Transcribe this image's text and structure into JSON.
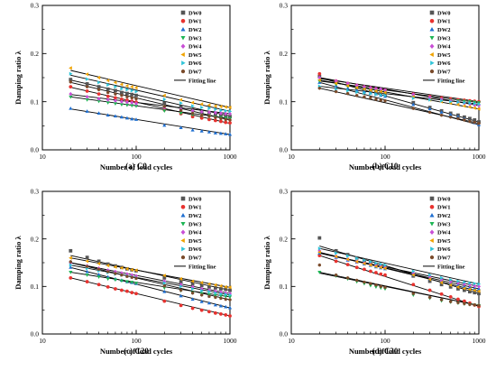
{
  "figure": {
    "legend_entries": [
      "DW0",
      "DW1",
      "DW2",
      "DW3",
      "DW4",
      "DW5",
      "DW6",
      "DW7"
    ],
    "legend_fit_label": "Fitting line",
    "series_styles": [
      {
        "name": "DW0",
        "color": "#555555",
        "marker": "square"
      },
      {
        "name": "DW1",
        "color": "#e8322f",
        "marker": "circle"
      },
      {
        "name": "DW2",
        "color": "#1f6fd1",
        "marker": "triangle-up"
      },
      {
        "name": "DW3",
        "color": "#1db554",
        "marker": "triangle-down"
      },
      {
        "name": "DW4",
        "color": "#c94fd6",
        "marker": "diamond"
      },
      {
        "name": "DW5",
        "color": "#f0a300",
        "marker": "triangle-left"
      },
      {
        "name": "DW6",
        "color": "#2fc4d8",
        "marker": "triangle-right"
      },
      {
        "name": "DW7",
        "color": "#7a4a2a",
        "marker": "hexagon"
      }
    ]
  },
  "chart_data": [
    {
      "type": "scatter",
      "caption": "(a) C0",
      "xlabel": "Number of load cycles",
      "ylabel": "Damping ratio λ",
      "xscale": "log",
      "xlim": [
        10,
        1000
      ],
      "ylim": [
        0.0,
        0.3
      ],
      "xticks": [
        10,
        100,
        1000
      ],
      "yticks": [
        0.0,
        0.1,
        0.2,
        0.3
      ],
      "x": [
        20,
        30,
        40,
        50,
        60,
        70,
        80,
        90,
        100,
        200,
        300,
        400,
        500,
        600,
        700,
        800,
        900,
        1000
      ],
      "series": [
        {
          "name": "DW0",
          "fit": [
            0.145,
            0.07
          ],
          "values": [
            0.146,
            0.137,
            0.131,
            0.126,
            0.123,
            0.119,
            0.117,
            0.115,
            0.113,
            0.097,
            0.089,
            0.083,
            0.079,
            0.077,
            0.074,
            0.072,
            0.071,
            0.069
          ]
        },
        {
          "name": "DW1",
          "fit": [
            0.13,
            0.055
          ],
          "values": [
            0.131,
            0.122,
            0.116,
            0.111,
            0.108,
            0.105,
            0.103,
            0.101,
            0.099,
            0.083,
            0.075,
            0.069,
            0.066,
            0.063,
            0.061,
            0.059,
            0.057,
            0.056
          ]
        },
        {
          "name": "DW2",
          "fit": [
            0.085,
            0.032
          ],
          "values": [
            0.086,
            0.08,
            0.076,
            0.072,
            0.07,
            0.068,
            0.066,
            0.064,
            0.063,
            0.051,
            0.046,
            0.041,
            0.039,
            0.037,
            0.035,
            0.034,
            0.033,
            0.032
          ]
        },
        {
          "name": "DW3",
          "fit": [
            0.11,
            0.065
          ],
          "values": [
            0.11,
            0.104,
            0.101,
            0.098,
            0.096,
            0.094,
            0.093,
            0.092,
            0.091,
            0.081,
            0.076,
            0.073,
            0.071,
            0.069,
            0.068,
            0.067,
            0.066,
            0.065
          ]
        },
        {
          "name": "DW4",
          "fit": [
            0.115,
            0.075
          ],
          "values": [
            0.116,
            0.11,
            0.106,
            0.104,
            0.102,
            0.1,
            0.099,
            0.098,
            0.096,
            0.088,
            0.084,
            0.081,
            0.079,
            0.078,
            0.077,
            0.076,
            0.075,
            0.075
          ]
        },
        {
          "name": "DW5",
          "fit": [
            0.165,
            0.088
          ],
          "values": [
            0.17,
            0.157,
            0.15,
            0.144,
            0.14,
            0.136,
            0.133,
            0.131,
            0.129,
            0.113,
            0.104,
            0.098,
            0.095,
            0.093,
            0.091,
            0.09,
            0.089,
            0.088
          ]
        },
        {
          "name": "DW6",
          "fit": [
            0.155,
            0.08
          ],
          "values": [
            0.158,
            0.147,
            0.14,
            0.135,
            0.131,
            0.127,
            0.125,
            0.123,
            0.121,
            0.105,
            0.097,
            0.091,
            0.088,
            0.086,
            0.084,
            0.082,
            0.081,
            0.08
          ]
        },
        {
          "name": "DW7",
          "fit": [
            0.14,
            0.062
          ],
          "values": [
            0.141,
            0.131,
            0.125,
            0.119,
            0.116,
            0.113,
            0.11,
            0.108,
            0.106,
            0.09,
            0.082,
            0.076,
            0.072,
            0.07,
            0.067,
            0.065,
            0.063,
            0.062
          ]
        }
      ]
    },
    {
      "type": "scatter",
      "caption": "(b) C10",
      "xlabel": "Number of load cycles",
      "ylabel": "Damping ratio λ",
      "xscale": "log",
      "xlim": [
        10,
        1000
      ],
      "ylim": [
        0.0,
        0.3
      ],
      "xticks": [
        10,
        100,
        1000
      ],
      "yticks": [
        0.0,
        0.1,
        0.2,
        0.3
      ],
      "x": [
        20,
        30,
        40,
        50,
        60,
        70,
        80,
        90,
        100,
        200,
        300,
        400,
        500,
        600,
        700,
        800,
        900,
        1000
      ],
      "series": [
        {
          "name": "DW0",
          "fit": [
            0.15,
            0.058
          ],
          "values": [
            0.152,
            0.141,
            0.135,
            0.129,
            0.126,
            0.122,
            0.119,
            0.117,
            0.116,
            0.098,
            0.088,
            0.081,
            0.076,
            0.072,
            0.068,
            0.065,
            0.062,
            0.058
          ]
        },
        {
          "name": "DW1",
          "fit": [
            0.148,
            0.1
          ],
          "values": [
            0.158,
            0.143,
            0.138,
            0.134,
            0.131,
            0.129,
            0.127,
            0.125,
            0.124,
            0.116,
            0.111,
            0.108,
            0.106,
            0.104,
            0.103,
            0.102,
            0.101,
            0.1
          ]
        },
        {
          "name": "DW2",
          "fit": [
            0.14,
            0.052
          ],
          "values": [
            0.14,
            0.133,
            0.128,
            0.124,
            0.121,
            0.118,
            0.116,
            0.113,
            0.111,
            0.094,
            0.085,
            0.078,
            0.073,
            0.069,
            0.064,
            0.06,
            0.056,
            0.052
          ]
        },
        {
          "name": "DW3",
          "fit": [
            0.143,
            0.098
          ],
          "values": [
            0.143,
            0.136,
            0.132,
            0.129,
            0.127,
            0.125,
            0.123,
            0.122,
            0.121,
            0.113,
            0.108,
            0.105,
            0.103,
            0.102,
            0.101,
            0.1,
            0.099,
            0.098
          ]
        },
        {
          "name": "DW4",
          "fit": [
            0.15,
            0.092
          ],
          "values": [
            0.15,
            0.143,
            0.138,
            0.134,
            0.131,
            0.129,
            0.127,
            0.126,
            0.124,
            0.115,
            0.109,
            0.105,
            0.102,
            0.099,
            0.097,
            0.095,
            0.093,
            0.092
          ]
        },
        {
          "name": "DW5",
          "fit": [
            0.145,
            0.085
          ],
          "values": [
            0.145,
            0.138,
            0.133,
            0.129,
            0.126,
            0.124,
            0.122,
            0.121,
            0.119,
            0.11,
            0.104,
            0.1,
            0.097,
            0.094,
            0.091,
            0.089,
            0.087,
            0.085
          ]
        },
        {
          "name": "DW6",
          "fit": [
            0.132,
            0.095
          ],
          "values": [
            0.132,
            0.126,
            0.123,
            0.12,
            0.118,
            0.117,
            0.115,
            0.114,
            0.113,
            0.107,
            0.104,
            0.102,
            0.1,
            0.099,
            0.098,
            0.097,
            0.096,
            0.095
          ]
        },
        {
          "name": "DW7",
          "fit": [
            0.128,
            0.055
          ],
          "values": [
            0.128,
            0.121,
            0.117,
            0.113,
            0.11,
            0.108,
            0.105,
            0.103,
            0.102,
            0.086,
            0.078,
            0.072,
            0.068,
            0.065,
            0.062,
            0.059,
            0.057,
            0.055
          ]
        }
      ]
    },
    {
      "type": "scatter",
      "caption": "(c) C20",
      "xlabel": "Number of load cycles",
      "ylabel": "Damping ratio λ",
      "xscale": "log",
      "xlim": [
        10,
        1000
      ],
      "ylim": [
        0.0,
        0.3
      ],
      "xticks": [
        10,
        100,
        1000
      ],
      "yticks": [
        0.0,
        0.1,
        0.2,
        0.3
      ],
      "x": [
        20,
        30,
        40,
        50,
        60,
        70,
        80,
        90,
        100,
        200,
        300,
        400,
        500,
        600,
        700,
        800,
        900,
        1000
      ],
      "series": [
        {
          "name": "DW0",
          "fit": [
            0.165,
            0.092
          ],
          "values": [
            0.175,
            0.161,
            0.153,
            0.147,
            0.143,
            0.14,
            0.137,
            0.135,
            0.133,
            0.118,
            0.11,
            0.105,
            0.102,
            0.099,
            0.097,
            0.095,
            0.094,
            0.092
          ]
        },
        {
          "name": "DW1",
          "fit": [
            0.118,
            0.038
          ],
          "values": [
            0.118,
            0.11,
            0.104,
            0.099,
            0.095,
            0.092,
            0.09,
            0.087,
            0.085,
            0.069,
            0.06,
            0.054,
            0.05,
            0.047,
            0.044,
            0.042,
            0.04,
            0.038
          ]
        },
        {
          "name": "DW2",
          "fit": [
            0.14,
            0.055
          ],
          "values": [
            0.14,
            0.131,
            0.125,
            0.12,
            0.116,
            0.113,
            0.11,
            0.108,
            0.106,
            0.089,
            0.08,
            0.073,
            0.068,
            0.065,
            0.061,
            0.059,
            0.057,
            0.055
          ]
        },
        {
          "name": "DW3",
          "fit": [
            0.13,
            0.078
          ],
          "values": [
            0.13,
            0.124,
            0.12,
            0.116,
            0.114,
            0.112,
            0.11,
            0.109,
            0.107,
            0.097,
            0.091,
            0.087,
            0.085,
            0.083,
            0.081,
            0.08,
            0.079,
            0.078
          ]
        },
        {
          "name": "DW4",
          "fit": [
            0.15,
            0.085
          ],
          "values": [
            0.15,
            0.143,
            0.138,
            0.134,
            0.131,
            0.128,
            0.126,
            0.124,
            0.122,
            0.111,
            0.104,
            0.099,
            0.095,
            0.092,
            0.09,
            0.088,
            0.086,
            0.085
          ]
        },
        {
          "name": "DW5",
          "fit": [
            0.16,
            0.098
          ],
          "values": [
            0.16,
            0.153,
            0.148,
            0.144,
            0.141,
            0.139,
            0.137,
            0.135,
            0.134,
            0.123,
            0.116,
            0.111,
            0.108,
            0.105,
            0.103,
            0.101,
            0.099,
            0.098
          ]
        },
        {
          "name": "DW6",
          "fit": [
            0.145,
            0.082
          ],
          "values": [
            0.145,
            0.138,
            0.133,
            0.129,
            0.126,
            0.124,
            0.122,
            0.12,
            0.118,
            0.107,
            0.1,
            0.095,
            0.091,
            0.089,
            0.086,
            0.084,
            0.083,
            0.082
          ]
        },
        {
          "name": "DW7",
          "fit": [
            0.15,
            0.072
          ],
          "values": [
            0.152,
            0.142,
            0.136,
            0.131,
            0.127,
            0.124,
            0.121,
            0.119,
            0.117,
            0.101,
            0.092,
            0.086,
            0.082,
            0.079,
            0.077,
            0.075,
            0.073,
            0.072
          ]
        }
      ]
    },
    {
      "type": "scatter",
      "caption": "(d) C30",
      "xlabel": "Number of load cycles",
      "ylabel": "Damping ratio λ",
      "xscale": "log",
      "xlim": [
        10,
        1000
      ],
      "ylim": [
        0.0,
        0.3
      ],
      "xticks": [
        10,
        100,
        1000
      ],
      "yticks": [
        0.0,
        0.1,
        0.2,
        0.3
      ],
      "x": [
        20,
        30,
        40,
        50,
        60,
        70,
        80,
        90,
        100,
        200,
        300,
        400,
        500,
        600,
        700,
        800,
        900,
        1000
      ],
      "series": [
        {
          "name": "DW0",
          "fit": [
            0.185,
            0.085
          ],
          "values": [
            0.202,
            0.175,
            0.167,
            0.16,
            0.155,
            0.151,
            0.147,
            0.144,
            0.141,
            0.122,
            0.111,
            0.104,
            0.099,
            0.095,
            0.092,
            0.089,
            0.087,
            0.085
          ]
        },
        {
          "name": "DW1",
          "fit": [
            0.165,
            0.058
          ],
          "values": [
            0.165,
            0.153,
            0.146,
            0.14,
            0.136,
            0.132,
            0.129,
            0.126,
            0.124,
            0.104,
            0.092,
            0.084,
            0.078,
            0.073,
            0.069,
            0.065,
            0.061,
            0.058
          ]
        },
        {
          "name": "DW2",
          "fit": [
            0.17,
            0.095
          ],
          "values": [
            0.17,
            0.161,
            0.155,
            0.151,
            0.147,
            0.144,
            0.141,
            0.139,
            0.137,
            0.124,
            0.116,
            0.11,
            0.106,
            0.103,
            0.1,
            0.098,
            0.096,
            0.095
          ]
        },
        {
          "name": "DW3",
          "fit": [
            0.13,
            0.06
          ],
          "values": [
            0.13,
            0.122,
            0.116,
            0.11,
            0.106,
            0.102,
            0.099,
            0.097,
            0.095,
            0.082,
            0.075,
            0.07,
            0.067,
            0.065,
            0.063,
            0.062,
            0.061,
            0.06
          ]
        },
        {
          "name": "DW4",
          "fit": [
            0.17,
            0.1
          ],
          "values": [
            0.175,
            0.163,
            0.157,
            0.152,
            0.149,
            0.146,
            0.144,
            0.142,
            0.14,
            0.128,
            0.12,
            0.114,
            0.11,
            0.107,
            0.105,
            0.103,
            0.101,
            0.1
          ]
        },
        {
          "name": "DW5",
          "fit": [
            0.172,
            0.09
          ],
          "values": [
            0.172,
            0.163,
            0.157,
            0.152,
            0.148,
            0.145,
            0.142,
            0.14,
            0.138,
            0.124,
            0.115,
            0.108,
            0.103,
            0.099,
            0.096,
            0.094,
            0.092,
            0.09
          ]
        },
        {
          "name": "DW6",
          "fit": [
            0.18,
            0.105
          ],
          "values": [
            0.18,
            0.17,
            0.164,
            0.159,
            0.155,
            0.152,
            0.149,
            0.147,
            0.145,
            0.132,
            0.124,
            0.118,
            0.114,
            0.111,
            0.109,
            0.107,
            0.106,
            0.105
          ]
        },
        {
          "name": "DW7",
          "fit": [
            0.128,
            0.06
          ],
          "values": [
            0.145,
            0.124,
            0.118,
            0.113,
            0.109,
            0.106,
            0.103,
            0.1,
            0.098,
            0.085,
            0.077,
            0.072,
            0.068,
            0.066,
            0.064,
            0.062,
            0.061,
            0.06
          ]
        }
      ]
    }
  ]
}
